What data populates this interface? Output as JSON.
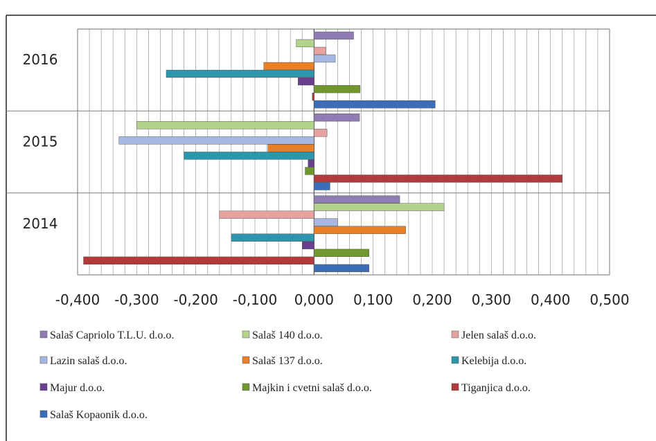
{
  "chart_data": {
    "type": "bar",
    "orientation": "horizontal",
    "title": "",
    "xlabel": "",
    "ylabel": "",
    "xlim": [
      -0.4,
      0.5
    ],
    "x_ticks": [
      "-0,400",
      "-0,300",
      "-0,200",
      "-0,100",
      "0,000",
      "0,100",
      "0,200",
      "0,300",
      "0,400",
      "0,500"
    ],
    "grid": true,
    "legend_position": "bottom",
    "categories": [
      "2016",
      "2015",
      "2014"
    ],
    "series": [
      {
        "name": "Salaš Capriolo T.L.U. d.o.o.",
        "color": "#8f7cb5",
        "values": [
          0.067,
          0.077,
          0.145
        ]
      },
      {
        "name": "Salaš 140 d.o.o.",
        "color": "#b3d38b",
        "values": [
          -0.03,
          -0.3,
          0.22
        ]
      },
      {
        "name": "Jelen salaš d.o.o.",
        "color": "#e7a2a0",
        "values": [
          0.02,
          0.022,
          -0.16
        ]
      },
      {
        "name": "Lazin salaš d.o.o.",
        "color": "#a4b8e2",
        "values": [
          0.036,
          -0.33,
          0.04
        ]
      },
      {
        "name": "Salaš 137 d.o.o.",
        "color": "#ea7f25",
        "values": [
          -0.085,
          -0.078,
          0.155
        ]
      },
      {
        "name": "Kelebija d.o.o.",
        "color": "#2c96ad",
        "values": [
          -0.25,
          -0.22,
          -0.14
        ]
      },
      {
        "name": "Majur d.o.o.",
        "color": "#6a3f8e",
        "values": [
          -0.027,
          -0.01,
          -0.02
        ]
      },
      {
        "name": "Majkin i cvetni salaš d.o.o.",
        "color": "#71972f",
        "values": [
          0.078,
          -0.015,
          0.093
        ]
      },
      {
        "name": "Tiganjica d.o.o.",
        "color": "#b23a3a",
        "values": [
          -0.003,
          0.42,
          -0.39
        ]
      },
      {
        "name": "Salaš Kopaonik d.o.o.",
        "color": "#3a6eb8",
        "values": [
          0.205,
          0.027,
          0.093
        ]
      }
    ]
  }
}
